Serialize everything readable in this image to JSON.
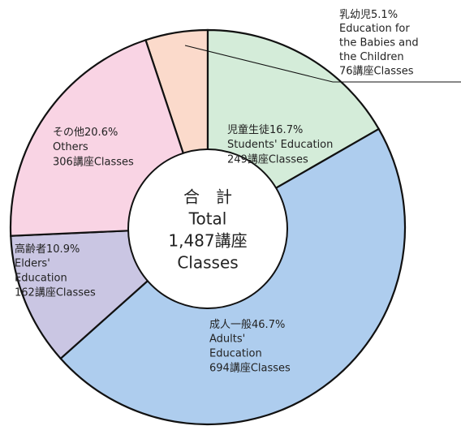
{
  "chart_data": {
    "type": "pie",
    "categories": [
      "乳幼児",
      "児童生徒",
      "成人一般",
      "高齢者",
      "その他"
    ],
    "english": [
      [
        "Education for",
        "the Babies and",
        "the Children"
      ],
      [
        "Students' Education"
      ],
      [
        "Adults'",
        "Education"
      ],
      [
        "Elders'",
        "Education"
      ],
      [
        "Others"
      ]
    ],
    "values": [
      5.1,
      16.7,
      46.7,
      10.9,
      20.6
    ],
    "value_labels": [
      "5.1%",
      "16.7%",
      "46.7%",
      "10.9%",
      "20.6%"
    ],
    "count_labels": [
      "76講座Classes",
      "249講座Classes",
      "694講座Classes",
      "162講座Classes",
      "306講座Classes"
    ],
    "colors": [
      "#fbdacb",
      "#d4ecd9",
      "#aecdee",
      "#cac6e3",
      "#f9d4e4"
    ],
    "center": [
      "合　計",
      "Total",
      "1,487講座",
      "Classes"
    ]
  }
}
